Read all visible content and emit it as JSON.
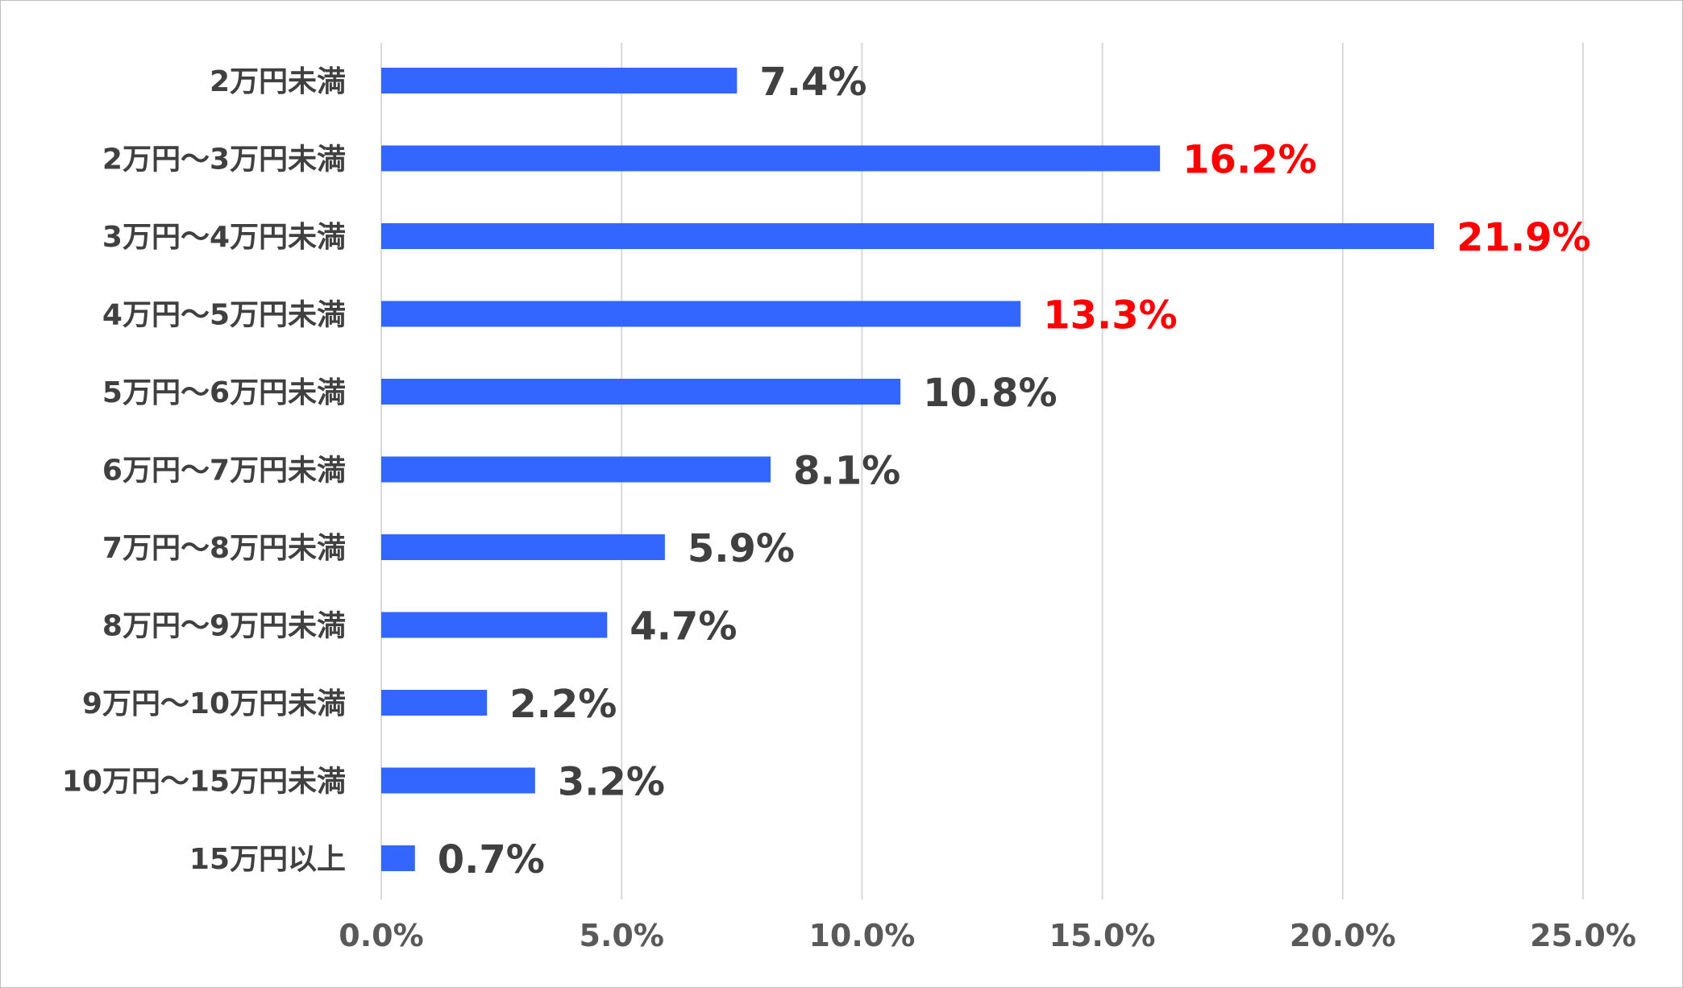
{
  "chart_data": {
    "type": "bar",
    "orientation": "horizontal",
    "categories": [
      "2万円未満",
      "2万円～3万円未満",
      "3万円～4万円未満",
      "4万円～5万円未満",
      "5万円～6万円未満",
      "6万円～7万円未満",
      "7万円～8万円未満",
      "8万円～9万円未満",
      "9万円～10万円未満",
      "10万円～15万円未満",
      "15万円以上"
    ],
    "values": [
      7.4,
      16.2,
      21.9,
      13.3,
      10.8,
      8.1,
      5.9,
      4.7,
      2.2,
      3.2,
      0.7
    ],
    "value_labels": [
      "7.4%",
      "16.2%",
      "21.9%",
      "13.3%",
      "10.8%",
      "8.1%",
      "5.9%",
      "4.7%",
      "2.2%",
      "3.2%",
      "0.7%"
    ],
    "highlighted": [
      false,
      true,
      true,
      true,
      false,
      false,
      false,
      false,
      false,
      false,
      false
    ],
    "xlim": [
      0,
      25
    ],
    "x_ticks": [
      0,
      5,
      10,
      15,
      20,
      25
    ],
    "x_tick_labels": [
      "0.0%",
      "5.0%",
      "10.0%",
      "15.0%",
      "20.0%",
      "25.0%"
    ],
    "title": "",
    "xlabel": "",
    "ylabel": "",
    "grid": "vertical",
    "legend": "none",
    "colors": {
      "bar": "#3366ff",
      "label_default": "#404040",
      "label_highlight": "#ff0000",
      "tick_label": "#595959",
      "category_label": "#404040",
      "gridline": "#d9d9d9",
      "border": "#bfbfbf"
    }
  }
}
